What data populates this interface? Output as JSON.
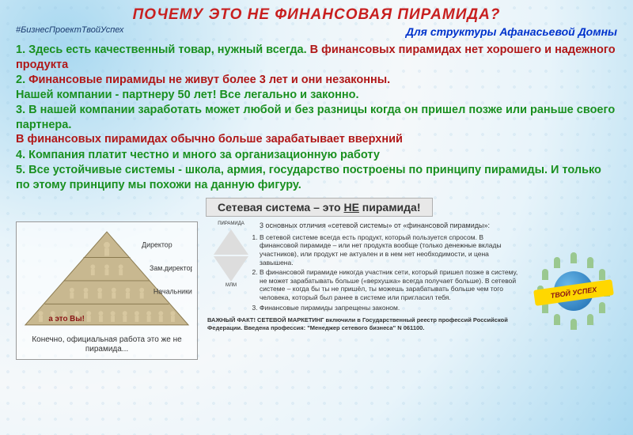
{
  "title": "ПОЧЕМУ ЭТО НЕ ФИНАНСОВАЯ ПИРАМИДА?",
  "hashtag": "#БизнесПроектТвойУспех",
  "subtitle": "Для структуры Афанасьевой Домны",
  "points": [
    {
      "n": "1.",
      "g": "Здесь есть качественный товар, нужный всегда.",
      "r": "В финансовых пирамидах нет хорошего и надежного продукта"
    },
    {
      "n": "2.",
      "r": "Финансовые пирамиды не живут более 3 лет и они незаконны.",
      "g": "Нашей компании - партнеру 50 лет! Все легально и законно."
    },
    {
      "n": "3.",
      "g": "В нашей компании заработать может любой и без разницы когда он пришел позже или раньше своего партнера.",
      "r": "В финансовых пирамидах обычно больше зарабатывает вверхний"
    },
    {
      "n": "4.",
      "g": "Компания платит честно и много за организационную работу",
      "r": ""
    },
    {
      "n": "5.",
      "g": "Все устойчивые системы - школа, армия, государство построены по принципу пирамиды. И только по этому принципу мы похожи на данную фигуру.",
      "r": ""
    }
  ],
  "banner": {
    "pre": "Сетевая система – это ",
    "not": "НЕ",
    "post": " пирамида!"
  },
  "pyramid": {
    "levels": [
      "Директор",
      "Зам.директора",
      "Начальники",
      "а это Вы!"
    ],
    "caption": "Конечно, официальная работа это же не пирамида...",
    "colors": {
      "fill": "#c8b890",
      "stroke": "#8a7a50",
      "figure": "#d8c8a0"
    }
  },
  "diffs": {
    "title": "3 основных отличия «сетевой системы» от «финансовой пирамиды»:",
    "diagram": {
      "top": "ПИРАМИДА",
      "bottom": "МЛМ"
    },
    "items": [
      "В сетевой системе всегда есть продукт, который пользуется спросом. В финансовой пирамиде – или нет продукта вообще (только денежные вклады участников), или продукт не актуален и в нем нет необходимости, и цена завышена.",
      "В финансовой пирамиде никогда участник сети, который пришел позже в систему, не может зарабатывать больше («верхушка» всегда получает больше). В сетевой системе – когда бы ты не пришёл, ты можешь зарабатывать больше чем того человека, который был ранее в системе или пригласил тебя.",
      "Финансовые пирамиды запрещены законом."
    ],
    "fact": "ВАЖНЫЙ ФАКТ! СЕТЕВОЙ МАРКЕТИНГ включили в Государственный реестр профессий Российской Федерации. Введена профессия: \"Менеджер сетевого бизнеса\" N 061100."
  },
  "logo": {
    "text": "ТВОЙ УСПЕХ",
    "ribbon_color": "#ffd700",
    "text_color": "#8a1515"
  }
}
